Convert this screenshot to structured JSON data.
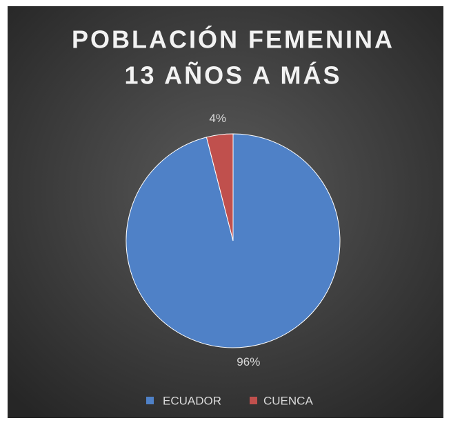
{
  "chart_data": {
    "type": "pie",
    "title": [
      "POBLACIÓN FEMENINA",
      "13 AÑOS A MÁS"
    ],
    "categories": [
      "ECUADOR",
      "CUENCA"
    ],
    "values": [
      96,
      4
    ],
    "value_labels": [
      "96%",
      "4%"
    ],
    "colors": [
      "#4f81c7",
      "#c0504d"
    ],
    "legend": "bottom"
  }
}
